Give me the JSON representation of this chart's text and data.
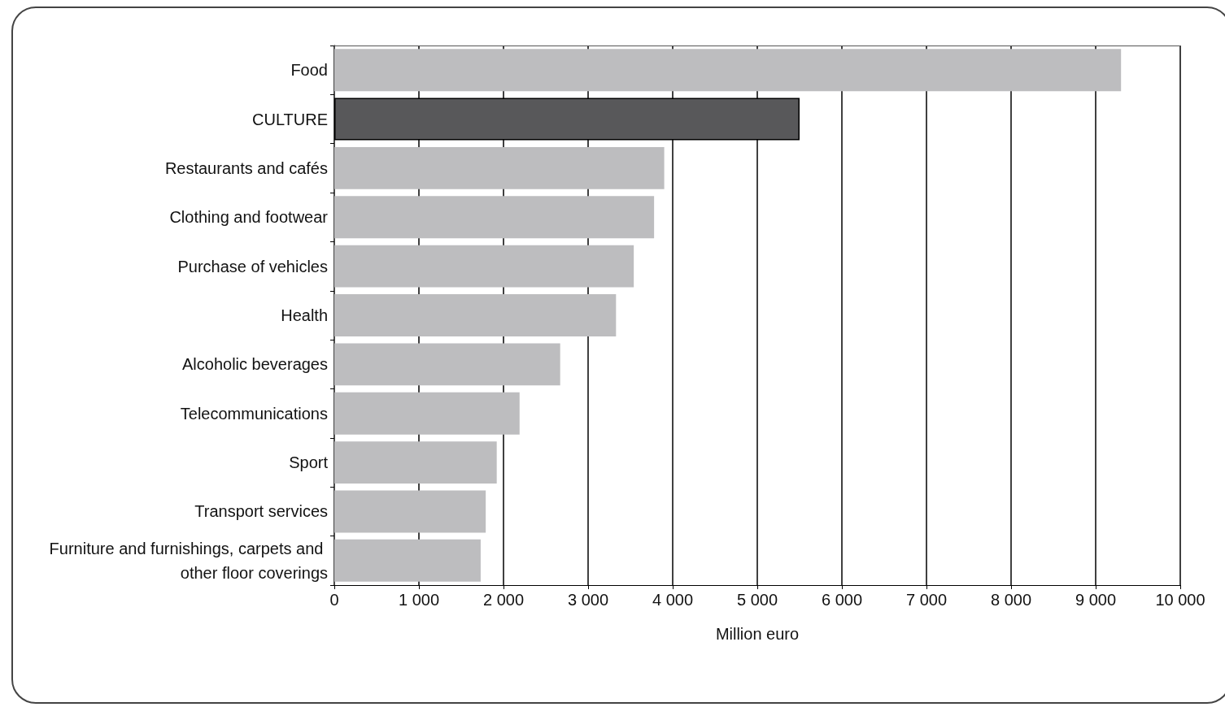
{
  "chart_data": {
    "type": "bar",
    "orientation": "horizontal",
    "categories": [
      "Food",
      "CULTURE",
      "Restaurants and cafés",
      "Clothing and footwear",
      "Purchase of vehicles",
      "Health",
      "Alcoholic beverages",
      "Telecommunications",
      "Sport",
      "Transport services",
      "Furniture and furnishings, carpets and other floor coverings"
    ],
    "values": [
      9300,
      5500,
      3900,
      3780,
      3540,
      3330,
      2670,
      2190,
      1920,
      1790,
      1730
    ],
    "colors": [
      "#bdbdbf",
      "#58585a",
      "#bdbdbf",
      "#bdbdbf",
      "#bdbdbf",
      "#bdbdbf",
      "#bdbdbf",
      "#bdbdbf",
      "#bdbdbf",
      "#bdbdbf",
      "#bdbdbf"
    ],
    "xlabel": "Million euro",
    "xlim": [
      0,
      10000
    ],
    "xticks": [
      0,
      {
        "value": 1000,
        "label": "1 000"
      },
      {
        "value": 2000,
        "label": "2 000"
      },
      {
        "value": 3000,
        "label": "3 000"
      },
      {
        "value": 4000,
        "label": "4 000"
      },
      {
        "value": 5000,
        "label": "5 000"
      },
      {
        "value": 6000,
        "label": "6 000"
      },
      {
        "value": 7000,
        "label": "7 000"
      },
      {
        "value": 8000,
        "label": "8 000"
      },
      {
        "value": 9000,
        "label": "9 000"
      },
      {
        "value": 10000,
        "label": "10 000"
      }
    ],
    "grid": "x"
  }
}
